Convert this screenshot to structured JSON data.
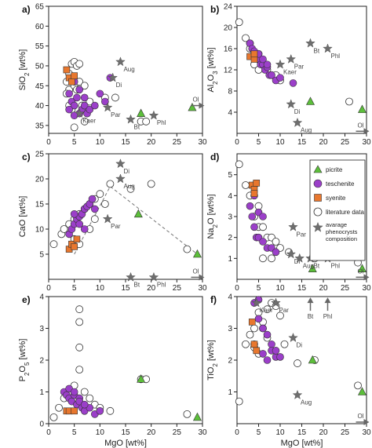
{
  "colors": {
    "picrite": "#5cbf3a",
    "teschenite": "#9b3fc9",
    "syenite": "#e8772e",
    "literature": "#ffffff",
    "phenocryst": "#6e6e6e",
    "outline": "#333333"
  },
  "legend": {
    "items": [
      {
        "symbol": "triangle",
        "label": "picrite"
      },
      {
        "symbol": "circle-purple",
        "label": "teschenite"
      },
      {
        "symbol": "square",
        "label": "syenite"
      },
      {
        "symbol": "circle-open",
        "label": "literature data"
      },
      {
        "symbol": "star",
        "label": "avarage phenocrysts composition"
      }
    ]
  },
  "chart_data": [
    {
      "type": "scatter",
      "panel_label": "a)",
      "xlabel": "",
      "ylabel": "SiO2 [wt%]",
      "xlim": [
        0,
        30
      ],
      "ylim": [
        33,
        65
      ],
      "xticks": [
        "0",
        "5",
        "10",
        "15",
        "20",
        "25",
        "30"
      ],
      "yticks": [
        "35",
        "40",
        "45",
        "50",
        "55",
        "60",
        "65"
      ],
      "yticks_values": [
        35,
        40,
        45,
        50,
        55,
        60,
        65
      ],
      "literature": [
        [
          4.0,
          48
        ],
        [
          4.5,
          50.5
        ],
        [
          5,
          51
        ],
        [
          5.5,
          50
        ],
        [
          6,
          50.5
        ],
        [
          3.5,
          46
        ],
        [
          4,
          44
        ],
        [
          3.5,
          43
        ],
        [
          5,
          45
        ],
        [
          6,
          46
        ],
        [
          7,
          45
        ],
        [
          5.5,
          44
        ],
        [
          4,
          40
        ],
        [
          4.5,
          39
        ],
        [
          6.5,
          40
        ],
        [
          8,
          41
        ],
        [
          5,
          34.5
        ],
        [
          7,
          36
        ],
        [
          13,
          42
        ],
        [
          11,
          42
        ],
        [
          18,
          36
        ],
        [
          19,
          36
        ]
      ],
      "teschenite": [
        [
          4,
          43
        ],
        [
          4.5,
          41
        ],
        [
          5,
          40
        ],
        [
          5.5,
          42
        ],
        [
          6,
          38
        ],
        [
          6.5,
          39
        ],
        [
          7,
          40
        ],
        [
          7.5,
          38
        ],
        [
          8,
          39
        ],
        [
          5,
          46
        ],
        [
          6,
          44
        ],
        [
          7,
          42
        ],
        [
          9,
          40
        ],
        [
          10,
          43
        ],
        [
          11,
          41
        ],
        [
          12,
          47
        ],
        [
          4,
          39
        ],
        [
          5,
          37.5
        ]
      ],
      "syenite": [
        [
          3.5,
          49
        ],
        [
          4,
          47
        ],
        [
          4.5,
          46
        ],
        [
          5,
          47.5
        ]
      ],
      "picrite": [
        [
          18,
          38
        ],
        [
          28,
          39.5
        ]
      ],
      "stars": [
        {
          "x": 14,
          "y": 51,
          "label": "Aug"
        },
        {
          "x": 12.5,
          "y": 47,
          "label": "Di"
        },
        {
          "x": 11.5,
          "y": 39.5,
          "label": "Par"
        },
        {
          "x": 6,
          "y": 38,
          "label": "Kaer"
        },
        {
          "x": 16,
          "y": 36.5,
          "label": "Bt"
        },
        {
          "x": 20.5,
          "y": 37.5,
          "label": "Phl"
        }
      ],
      "arrows": [
        {
          "x": 29,
          "y": 40,
          "dir": "right",
          "label": "Ol"
        }
      ]
    },
    {
      "type": "scatter",
      "panel_label": "b)",
      "xlabel": "",
      "ylabel": "Al2O3 [wt%]",
      "xlim": [
        0,
        30
      ],
      "ylim": [
        0,
        24
      ],
      "xticks": [
        "0",
        "5",
        "10",
        "15",
        "20",
        "25",
        "30"
      ],
      "yticks": [
        "4",
        "8",
        "12",
        "16",
        "20",
        "24"
      ],
      "yticks_values": [
        4,
        8,
        12,
        16,
        20,
        24
      ],
      "literature": [
        [
          0.5,
          21
        ],
        [
          2,
          18
        ],
        [
          3,
          17
        ],
        [
          3,
          16
        ],
        [
          4,
          15
        ],
        [
          5,
          15
        ],
        [
          5.5,
          14
        ],
        [
          6,
          13
        ],
        [
          7,
          12
        ],
        [
          8,
          11
        ],
        [
          9,
          11
        ],
        [
          10,
          10
        ],
        [
          4,
          13
        ],
        [
          5,
          12
        ],
        [
          26,
          6
        ]
      ],
      "teschenite": [
        [
          3,
          17
        ],
        [
          3.5,
          16
        ],
        [
          4,
          15.5
        ],
        [
          4.5,
          14.5
        ],
        [
          5,
          14
        ],
        [
          5.5,
          13
        ],
        [
          6,
          13
        ],
        [
          6.5,
          12
        ],
        [
          7,
          12.5
        ],
        [
          7.5,
          11
        ],
        [
          8,
          11
        ],
        [
          9,
          10
        ],
        [
          10,
          10.5
        ],
        [
          5,
          15
        ],
        [
          6,
          14
        ],
        [
          7,
          13
        ],
        [
          13,
          9.5
        ]
      ],
      "syenite": [
        [
          3,
          14.5
        ],
        [
          4,
          14
        ],
        [
          4,
          15
        ]
      ],
      "picrite": [
        [
          17,
          6
        ],
        [
          29,
          4.5
        ]
      ],
      "stars": [
        {
          "x": 17,
          "y": 17,
          "label": "Bt"
        },
        {
          "x": 21,
          "y": 16,
          "label": "Phl"
        },
        {
          "x": 10,
          "y": 13,
          "label": "Kaer"
        },
        {
          "x": 12.5,
          "y": 14,
          "label": "Par"
        },
        {
          "x": 12.5,
          "y": 5.5,
          "label": "Di"
        },
        {
          "x": 14,
          "y": 2,
          "label": "Aug"
        }
      ],
      "arrows": [
        {
          "x": 29,
          "y": 0.4,
          "dir": "right",
          "label": "Ol"
        }
      ]
    },
    {
      "type": "scatter",
      "panel_label": "c)",
      "xlabel": "",
      "ylabel": "CaO [wt%]",
      "xlim": [
        0,
        30
      ],
      "ylim": [
        0,
        25
      ],
      "xticks": [
        "0",
        "5",
        "10",
        "15",
        "20",
        "25",
        "30"
      ],
      "yticks": [
        "5",
        "10",
        "15",
        "20",
        "25"
      ],
      "yticks_values": [
        5,
        10,
        15,
        20,
        25
      ],
      "literature": [
        [
          1,
          7
        ],
        [
          2.5,
          9
        ],
        [
          3,
          10
        ],
        [
          4,
          11
        ],
        [
          5,
          12
        ],
        [
          6,
          13
        ],
        [
          7,
          14
        ],
        [
          8,
          15
        ],
        [
          9,
          16
        ],
        [
          10,
          17
        ],
        [
          11,
          15
        ],
        [
          12,
          19
        ],
        [
          16,
          18
        ],
        [
          20,
          19
        ],
        [
          27,
          6
        ],
        [
          5,
          8
        ],
        [
          6,
          7
        ],
        [
          8,
          10
        ],
        [
          9,
          12
        ]
      ],
      "teschenite": [
        [
          4,
          9
        ],
        [
          4.5,
          10
        ],
        [
          5,
          11
        ],
        [
          5.5,
          12
        ],
        [
          6,
          12.5
        ],
        [
          6.5,
          13
        ],
        [
          7,
          14
        ],
        [
          7.5,
          14.5
        ],
        [
          8,
          15
        ],
        [
          8.5,
          16
        ],
        [
          5,
          13
        ],
        [
          6,
          11
        ],
        [
          7,
          10
        ],
        [
          9,
          14
        ]
      ],
      "syenite": [
        [
          4,
          6
        ],
        [
          4.5,
          7
        ],
        [
          5,
          6.5
        ],
        [
          5.5,
          8
        ]
      ],
      "picrite": [
        [
          17.5,
          13
        ],
        [
          29,
          5
        ]
      ],
      "stars": [
        {
          "x": 14,
          "y": 23,
          "label": "Di"
        },
        {
          "x": 14,
          "y": 20,
          "label": "Aug"
        },
        {
          "x": 11.5,
          "y": 12,
          "label": "Par"
        },
        {
          "x": 16,
          "y": 0.4,
          "label": "Bt"
        },
        {
          "x": 20.5,
          "y": 0.4,
          "label": "Phl"
        }
      ],
      "arrows": [
        {
          "x": 29,
          "y": 0.4,
          "dir": "right",
          "label": "Ol"
        }
      ],
      "trend_line": [
        [
          5,
          5
        ],
        [
          12,
          18.5
        ],
        [
          29,
          5
        ]
      ]
    },
    {
      "type": "scatter",
      "panel_label": "d)",
      "xlabel": "",
      "ylabel": "Na2O [wt%]",
      "xlim": [
        0,
        30
      ],
      "ylim": [
        0,
        6
      ],
      "xticks": [
        "0",
        "5",
        "10",
        "15",
        "20",
        "25",
        "30"
      ],
      "yticks": [
        "1",
        "2",
        "3",
        "4",
        "5"
      ],
      "yticks_values": [
        1,
        2,
        3,
        4,
        5
      ],
      "literature": [
        [
          0.5,
          5.5
        ],
        [
          2,
          4.5
        ],
        [
          3,
          4
        ],
        [
          4,
          4.5
        ],
        [
          5,
          3.5
        ],
        [
          4,
          3
        ],
        [
          5,
          2.5
        ],
        [
          6,
          2.5
        ],
        [
          7,
          2
        ],
        [
          8,
          2
        ],
        [
          9,
          1.8
        ],
        [
          10,
          1.5
        ],
        [
          6,
          1
        ],
        [
          8,
          1
        ],
        [
          12,
          1.3
        ],
        [
          18,
          1
        ],
        [
          28,
          0.8
        ]
      ],
      "teschenite": [
        [
          3,
          3.5
        ],
        [
          3.5,
          3
        ],
        [
          4,
          2.5
        ],
        [
          4.5,
          2
        ],
        [
          5,
          2
        ],
        [
          6,
          1.8
        ],
        [
          7,
          1.5
        ],
        [
          8,
          1.5
        ],
        [
          9,
          1.3
        ],
        [
          4,
          4
        ],
        [
          5,
          3.2
        ],
        [
          6,
          3
        ]
      ],
      "syenite": [
        [
          3.5,
          4.5
        ],
        [
          4,
          4.3
        ],
        [
          4.5,
          4.6
        ],
        [
          4,
          4.1
        ]
      ],
      "picrite": [
        [
          17.5,
          0.5
        ],
        [
          29,
          0.5
        ]
      ],
      "stars": [
        {
          "x": 12.5,
          "y": 1.2,
          "label": "Di"
        },
        {
          "x": 14.5,
          "y": 1,
          "label": "Aug"
        },
        {
          "x": 13,
          "y": 2.5,
          "label": "Par"
        },
        {
          "x": 17,
          "y": 1,
          "label": "Bt"
        },
        {
          "x": 21,
          "y": 1,
          "label": "Phl"
        }
      ],
      "arrows": [
        {
          "x": 29,
          "y": 0.1,
          "dir": "right",
          "label": "Ol"
        }
      ]
    },
    {
      "type": "scatter",
      "panel_label": "e)",
      "xlabel": "MgO [wt%]",
      "ylabel": "P2O5 [wt%]",
      "xlim": [
        0,
        30
      ],
      "ylim": [
        0,
        4
      ],
      "xticks": [
        "0",
        "5",
        "10",
        "15",
        "20",
        "25",
        "30"
      ],
      "yticks": [
        "0",
        "1",
        "2",
        "3",
        "4"
      ],
      "yticks_values": [
        0,
        1,
        2,
        3,
        4
      ],
      "literature": [
        [
          1,
          0.2
        ],
        [
          2,
          0.5
        ],
        [
          3,
          0.8
        ],
        [
          4,
          1
        ],
        [
          5,
          1.2
        ],
        [
          6,
          3.6
        ],
        [
          6,
          3.2
        ],
        [
          6,
          2.4
        ],
        [
          6,
          1.7
        ],
        [
          7,
          1
        ],
        [
          8,
          0.8
        ],
        [
          9,
          0.6
        ],
        [
          10,
          0.5
        ],
        [
          12,
          0.4
        ],
        [
          18,
          1.4
        ],
        [
          19,
          1.4
        ],
        [
          27,
          0.3
        ]
      ],
      "teschenite": [
        [
          3,
          1
        ],
        [
          3.5,
          0.9
        ],
        [
          4,
          0.8
        ],
        [
          4.5,
          0.7
        ],
        [
          5,
          0.9
        ],
        [
          5.5,
          0.6
        ],
        [
          6,
          0.8
        ],
        [
          6.5,
          0.5
        ],
        [
          7,
          0.4
        ],
        [
          8,
          0.5
        ],
        [
          9,
          0.3
        ],
        [
          10,
          0.4
        ],
        [
          4,
          1.1
        ],
        [
          5,
          1
        ],
        [
          6,
          0.7
        ],
        [
          7,
          0.6
        ]
      ],
      "syenite": [
        [
          3.5,
          0.4
        ],
        [
          4,
          0.4
        ],
        [
          5,
          0.4
        ]
      ],
      "picrite": [
        [
          18,
          1.4
        ],
        [
          29,
          0.2
        ]
      ],
      "stars": [],
      "arrows": []
    },
    {
      "type": "scatter",
      "panel_label": "f)",
      "xlabel": "MgO [wt%]",
      "ylabel": "TiO2 [wt%]",
      "xlim": [
        0,
        30
      ],
      "ylim": [
        0,
        4
      ],
      "xticks": [
        "0",
        "5",
        "10",
        "15",
        "20",
        "25",
        "30"
      ],
      "yticks": [
        "1",
        "2",
        "3",
        "4"
      ],
      "yticks_values": [
        1,
        2,
        3,
        4
      ],
      "literature": [
        [
          0.5,
          0.7
        ],
        [
          2,
          2.5
        ],
        [
          3,
          2.8
        ],
        [
          4,
          3
        ],
        [
          5,
          3.5
        ],
        [
          6,
          3.2
        ],
        [
          7,
          3.6
        ],
        [
          8,
          3.8
        ],
        [
          9,
          3.7
        ],
        [
          10,
          3.4
        ],
        [
          11,
          2.5
        ],
        [
          14,
          1.9
        ],
        [
          18,
          2
        ],
        [
          28,
          1.2
        ],
        [
          4,
          2.4
        ],
        [
          5,
          2.2
        ],
        [
          6,
          3
        ],
        [
          7,
          2.7
        ]
      ],
      "teschenite": [
        [
          4,
          3.8
        ],
        [
          5,
          3.9
        ],
        [
          5,
          3.3
        ],
        [
          6,
          3
        ],
        [
          7,
          2.8
        ],
        [
          8,
          2.5
        ],
        [
          8,
          2.3
        ],
        [
          9,
          2.1
        ],
        [
          9,
          2.3
        ],
        [
          10,
          2.1
        ],
        [
          6,
          2.2
        ],
        [
          7,
          2
        ],
        [
          4,
          2.5
        ]
      ],
      "syenite": [
        [
          3.5,
          3.2
        ],
        [
          4,
          2.5
        ],
        [
          4.5,
          2.3
        ]
      ],
      "picrite": [
        [
          17.5,
          2
        ],
        [
          29,
          1
        ]
      ],
      "stars": [
        {
          "x": 4.5,
          "y": 3.8,
          "label": "Kaer"
        },
        {
          "x": 9,
          "y": 3.8,
          "label": "Par"
        },
        {
          "x": 13,
          "y": 2.7,
          "label": "Di"
        },
        {
          "x": 14,
          "y": 0.9,
          "label": "Aug"
        }
      ],
      "arrows": [
        {
          "x": 17,
          "y": 3.8,
          "dir": "up",
          "label": "Bt"
        },
        {
          "x": 21,
          "y": 3.8,
          "dir": "up",
          "label": "Phl"
        },
        {
          "x": 29,
          "y": 0.05,
          "dir": "right",
          "label": "Ol"
        }
      ]
    }
  ]
}
